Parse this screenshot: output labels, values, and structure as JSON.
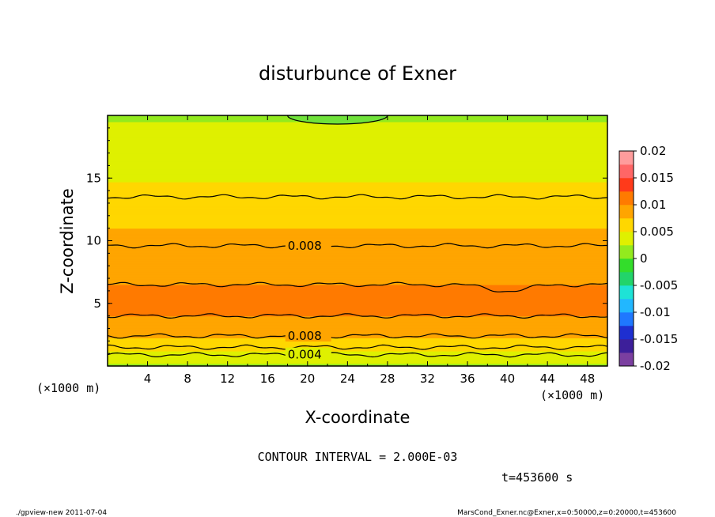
{
  "chart_data": {
    "type": "heatmap",
    "title": "disturbunce of Exner",
    "xlabel": "X-coordinate",
    "ylabel": "Z-coordinate",
    "x_unit": "(×1000 m)",
    "x_unit_right": "(×1000 m)",
    "y_unit": "(×1000 m)",
    "xlim": [
      0,
      50
    ],
    "ylim": [
      0,
      20
    ],
    "x_ticks": [
      "4",
      "8",
      "12",
      "16",
      "20",
      "24",
      "28",
      "32",
      "36",
      "40",
      "44",
      "48"
    ],
    "y_ticks": [
      "5",
      "10",
      "15"
    ],
    "colorbar": {
      "ticks": [
        "0.02",
        "0.015",
        "0.01",
        "0.005",
        "0",
        "-0.005",
        "-0.01",
        "-0.015",
        "-0.02"
      ],
      "range": [
        -0.02,
        0.02
      ],
      "colors": [
        "#7b3fa0",
        "#3d1f9a",
        "#1e2fd0",
        "#1f78ff",
        "#22b7ff",
        "#1ee3d6",
        "#22d46a",
        "#33dd2b",
        "#93ea1e",
        "#dff000",
        "#ffd700",
        "#ffa500",
        "#ff7a00",
        "#ff3a1a",
        "#ff6666",
        "#ff9c9c"
      ]
    },
    "contour_interval": "CONTOUR INTERVAL = 2.000E-03",
    "contour_labels": [
      "0.008",
      "0.008",
      "0.004"
    ],
    "profile": {
      "z": [
        0,
        0.4,
        0.8,
        1.2,
        1.6,
        2.0,
        2.5,
        3.0,
        3.5,
        4.0,
        5.0,
        6.0,
        7.0,
        8.0,
        9.0,
        10.0,
        11.0,
        12.0,
        13.0,
        14.0,
        15.0,
        16.0,
        17.0,
        18.0,
        19.0,
        20.0
      ],
      "values": [
        0.002,
        0.003,
        0.004,
        0.005,
        0.006,
        0.007,
        0.008,
        0.009,
        0.0095,
        0.01,
        0.0105,
        0.0102,
        0.0098,
        0.0094,
        0.009,
        0.0082,
        0.0075,
        0.0068,
        0.006,
        0.0055,
        0.0048,
        0.0042,
        0.0036,
        0.003,
        0.0026,
        0.0024
      ]
    },
    "contours": [
      {
        "level": 0.004,
        "z": 0.9
      },
      {
        "level": 0.006,
        "z": 1.5
      },
      {
        "level": 0.008,
        "z": 2.4
      },
      {
        "level": 0.01,
        "z": 4.0
      },
      {
        "level": 0.01,
        "z": 6.5
      },
      {
        "level": 0.008,
        "z": 9.6
      },
      {
        "level": 0.006,
        "z": 13.5
      }
    ],
    "time_label": "t=453600 s"
  },
  "footer": {
    "left": "./gpview-new  2011-07-04",
    "right": "MarsCond_Exner.nc@Exner,x=0:50000,z=0:20000,t=453600"
  }
}
